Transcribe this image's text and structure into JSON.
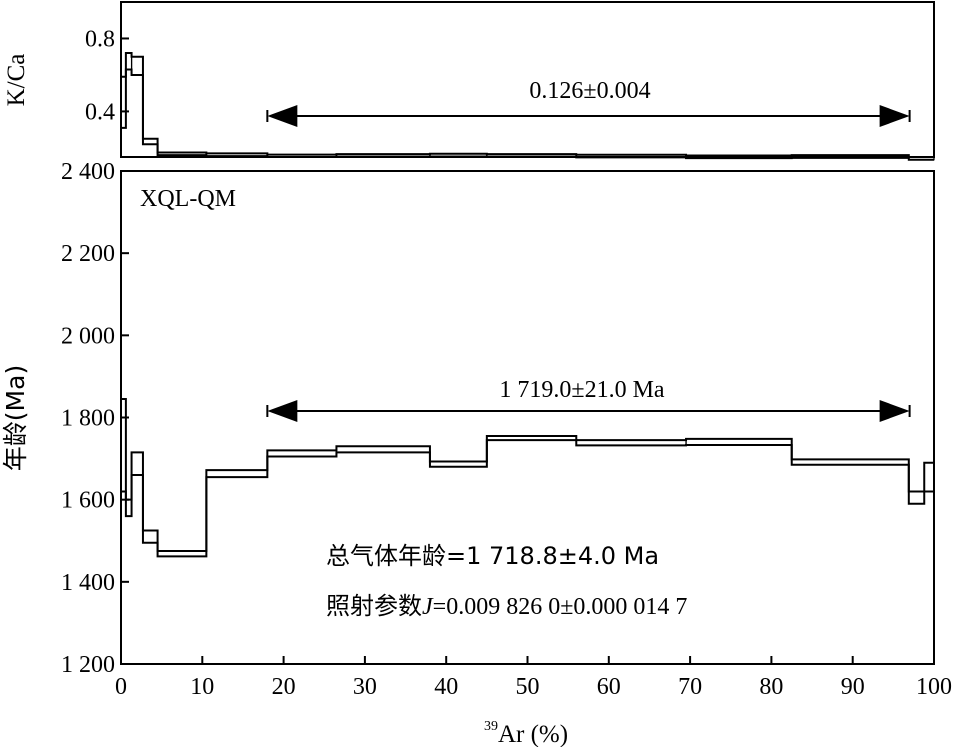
{
  "chart_data": [
    {
      "type": "step",
      "panel": "top",
      "ylabel": "K/Ca",
      "ylim": [
        0.15,
        1.0
      ],
      "xlim": [
        0,
        100
      ],
      "yticks": [
        {
          "v": 0.4,
          "label": "0.4"
        },
        {
          "v": 0.8,
          "label": "0.8"
        }
      ],
      "annotation": "0.126±0.004",
      "plateau_range": [
        18,
        97
      ],
      "steps": [
        {
          "x0": 0.0,
          "x1": 0.6,
          "lo": 0.31,
          "hi": 0.59
        },
        {
          "x0": 0.6,
          "x1": 1.3,
          "lo": 0.63,
          "hi": 0.72
        },
        {
          "x0": 1.3,
          "x1": 2.7,
          "lo": 0.6,
          "hi": 0.7
        },
        {
          "x0": 2.7,
          "x1": 4.5,
          "lo": 0.22,
          "hi": 0.25
        },
        {
          "x0": 4.5,
          "x1": 10.5,
          "lo": 0.16,
          "hi": 0.175
        },
        {
          "x0": 10.5,
          "x1": 18.0,
          "lo": 0.155,
          "hi": 0.17
        },
        {
          "x0": 18.0,
          "x1": 26.5,
          "lo": 0.15,
          "hi": 0.163
        },
        {
          "x0": 26.5,
          "x1": 38.0,
          "lo": 0.152,
          "hi": 0.166
        },
        {
          "x0": 38.0,
          "x1": 45.0,
          "lo": 0.153,
          "hi": 0.168
        },
        {
          "x0": 45.0,
          "x1": 56.0,
          "lo": 0.152,
          "hi": 0.166
        },
        {
          "x0": 56.0,
          "x1": 69.5,
          "lo": 0.148,
          "hi": 0.162
        },
        {
          "x0": 69.5,
          "x1": 82.5,
          "lo": 0.144,
          "hi": 0.158
        },
        {
          "x0": 82.5,
          "x1": 96.9,
          "lo": 0.145,
          "hi": 0.16
        },
        {
          "x0": 96.9,
          "x1": 100.0,
          "lo": 0.135,
          "hi": 0.15
        }
      ]
    },
    {
      "type": "step",
      "panel": "bottom",
      "ylabel": "年龄(Ma)",
      "xlabel_sup": "39",
      "xlabel": "Ar (%)",
      "ylim": [
        1200,
        2400
      ],
      "xlim": [
        0,
        100
      ],
      "yticks": [
        {
          "v": 1200,
          "label": "1 200"
        },
        {
          "v": 1400,
          "label": "1 400"
        },
        {
          "v": 1600,
          "label": "1 600"
        },
        {
          "v": 1800,
          "label": "1 800"
        },
        {
          "v": 2000,
          "label": "2 000"
        },
        {
          "v": 2200,
          "label": "2 200"
        },
        {
          "v": 2400,
          "label": "2 400"
        }
      ],
      "xticks": [
        {
          "v": 0,
          "label": "0"
        },
        {
          "v": 10,
          "label": "10"
        },
        {
          "v": 20,
          "label": "20"
        },
        {
          "v": 30,
          "label": "30"
        },
        {
          "v": 40,
          "label": "40"
        },
        {
          "v": 50,
          "label": "50"
        },
        {
          "v": 60,
          "label": "60"
        },
        {
          "v": 70,
          "label": "70"
        },
        {
          "v": 80,
          "label": "80"
        },
        {
          "v": 90,
          "label": "90"
        },
        {
          "v": 100,
          "label": "100"
        }
      ],
      "sample_label": "XQL-QM",
      "plateau_label": "1 719.0±21.0 Ma",
      "plateau_range": [
        18,
        97
      ],
      "total_gas_label": "总气体年龄=1 718.8±4.0 Ma",
      "j_label_prefix": "照射参数",
      "j_label_symbol": "J",
      "j_label_value": "=0.009 826 0±0.000 014 7",
      "steps": [
        {
          "x0": 0.0,
          "x1": 0.6,
          "lo": 1620,
          "hi": 1845
        },
        {
          "x0": 0.6,
          "x1": 1.3,
          "lo": 1560,
          "hi": 1600
        },
        {
          "x0": 1.3,
          "x1": 2.7,
          "lo": 1660,
          "hi": 1715
        },
        {
          "x0": 2.7,
          "x1": 4.5,
          "lo": 1495,
          "hi": 1525
        },
        {
          "x0": 4.5,
          "x1": 10.5,
          "lo": 1462,
          "hi": 1475
        },
        {
          "x0": 10.5,
          "x1": 18.0,
          "lo": 1655,
          "hi": 1672
        },
        {
          "x0": 18.0,
          "x1": 26.5,
          "lo": 1705,
          "hi": 1720
        },
        {
          "x0": 26.5,
          "x1": 38.0,
          "lo": 1715,
          "hi": 1730
        },
        {
          "x0": 38.0,
          "x1": 45.0,
          "lo": 1680,
          "hi": 1693
        },
        {
          "x0": 45.0,
          "x1": 56.0,
          "lo": 1745,
          "hi": 1755
        },
        {
          "x0": 56.0,
          "x1": 69.5,
          "lo": 1732,
          "hi": 1745
        },
        {
          "x0": 69.5,
          "x1": 82.5,
          "lo": 1733,
          "hi": 1748
        },
        {
          "x0": 82.5,
          "x1": 96.9,
          "lo": 1685,
          "hi": 1698
        },
        {
          "x0": 96.9,
          "x1": 98.8,
          "lo": 1590,
          "hi": 1620
        },
        {
          "x0": 98.8,
          "x1": 100.0,
          "lo": 1620,
          "hi": 1690
        }
      ]
    }
  ]
}
